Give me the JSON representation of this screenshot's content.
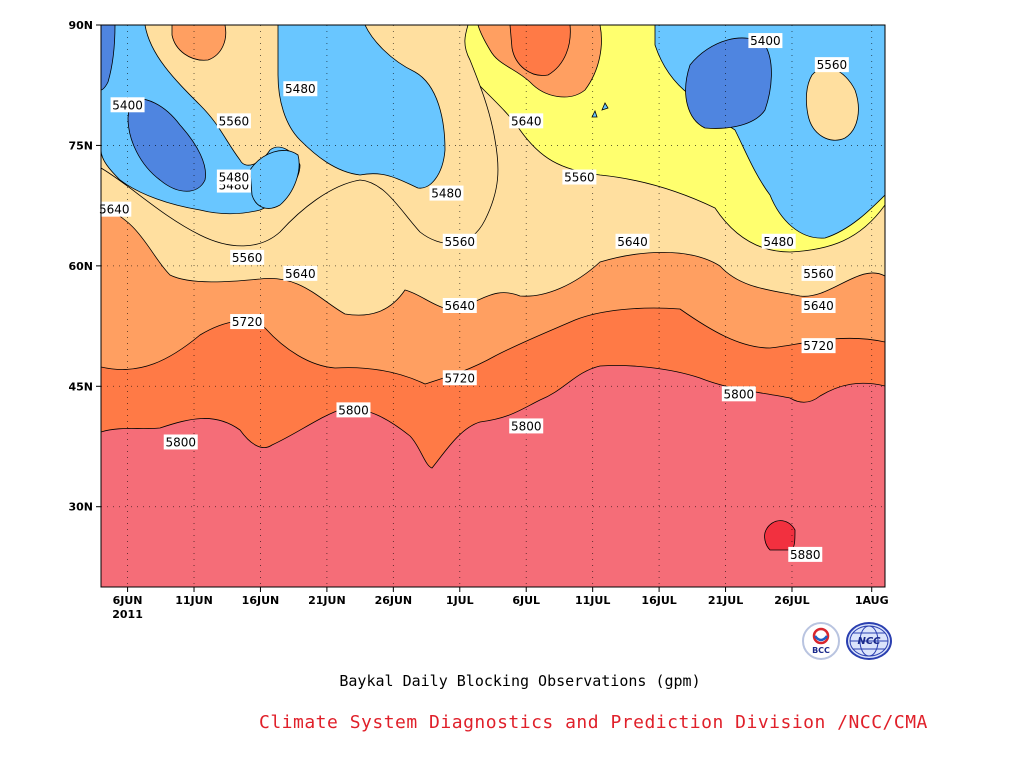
{
  "colors": {
    "c5400": "#4f85e0",
    "c5480": "#69c6ff",
    "c5560": "#ffff6e",
    "c5640": "#ffdf9f",
    "c5720": "#ff9f61",
    "c5800": "#ff7a46",
    "c5880": "#f56d78",
    "c5960": "#f2303f",
    "credit": "#e0202a"
  },
  "chart_data": {
    "type": "contour",
    "title": "Baykal Daily Blocking Observations (gpm)",
    "x_range": [
      "2011-06-04",
      "2011-08-02"
    ],
    "y_range": [
      20,
      90
    ],
    "x_ticks": [
      "6JUN",
      "11JUN",
      "16JUN",
      "21JUN",
      "26JUN",
      "1JUL",
      "6JUL",
      "11JUL",
      "16JUL",
      "21JUL",
      "26JUL",
      "1AUG"
    ],
    "x_tick_dates": [
      "2011-06-06",
      "2011-06-11",
      "2011-06-16",
      "2011-06-21",
      "2011-06-26",
      "2011-07-01",
      "2011-07-06",
      "2011-07-11",
      "2011-07-16",
      "2011-07-21",
      "2011-07-26",
      "2011-08-01"
    ],
    "year_label": "2011",
    "y_ticks": [
      "90N",
      "75N",
      "60N",
      "45N",
      "30N"
    ],
    "y_tick_values": [
      90,
      75,
      60,
      45,
      30
    ],
    "contour_levels": [
      5400,
      5480,
      5560,
      5640,
      5720,
      5800,
      5880
    ],
    "grid": true,
    "contour_labels": [
      {
        "text": "5400",
        "x": "2011-06-06",
        "y": 80
      },
      {
        "text": "5400",
        "x": "2011-07-24",
        "y": 88
      },
      {
        "text": "5480",
        "x": "2011-06-19",
        "y": 82
      },
      {
        "text": "5480",
        "x": "2011-06-14",
        "y": 70
      },
      {
        "text": "5480",
        "x": "2011-06-14",
        "y": 71
      },
      {
        "text": "5480",
        "x": "2011-06-30",
        "y": 69
      },
      {
        "text": "5480",
        "x": "2011-07-25",
        "y": 63
      },
      {
        "text": "5560",
        "x": "2011-06-14",
        "y": 78
      },
      {
        "text": "5560",
        "x": "2011-06-15",
        "y": 61
      },
      {
        "text": "5560",
        "x": "2011-07-01",
        "y": 63
      },
      {
        "text": "5560",
        "x": "2011-07-10",
        "y": 71
      },
      {
        "text": "5560",
        "x": "2011-07-29",
        "y": 85
      },
      {
        "text": "5560",
        "x": "2011-07-28",
        "y": 59
      },
      {
        "text": "5640",
        "x": "2011-06-05",
        "y": 67
      },
      {
        "text": "5640",
        "x": "2011-07-06",
        "y": 78
      },
      {
        "text": "5640",
        "x": "2011-06-19",
        "y": 59
      },
      {
        "text": "5640",
        "x": "2011-07-01",
        "y": 55
      },
      {
        "text": "5640",
        "x": "2011-07-14",
        "y": 63
      },
      {
        "text": "5640",
        "x": "2011-07-28",
        "y": 55
      },
      {
        "text": "5720",
        "x": "2011-06-15",
        "y": 53
      },
      {
        "text": "5720",
        "x": "2011-07-01",
        "y": 46
      },
      {
        "text": "5720",
        "x": "2011-07-28",
        "y": 50
      },
      {
        "text": "5800",
        "x": "2011-06-10",
        "y": 38
      },
      {
        "text": "5800",
        "x": "2011-06-23",
        "y": 42
      },
      {
        "text": "5800",
        "x": "2011-07-06",
        "y": 40
      },
      {
        "text": "5800",
        "x": "2011-07-22",
        "y": 44
      },
      {
        "text": "5880",
        "x": "2011-07-27",
        "y": 24
      }
    ]
  },
  "caption": "Baykal Daily Blocking Observations (gpm)",
  "credit": "Climate System Diagnostics and Prediction Division /NCC/CMA",
  "logos": {
    "bcc_text": "BCC",
    "ncc_text": "NCC",
    "bcc_icon": "bcc-logo",
    "ncc_icon": "ncc-globe-logo"
  }
}
